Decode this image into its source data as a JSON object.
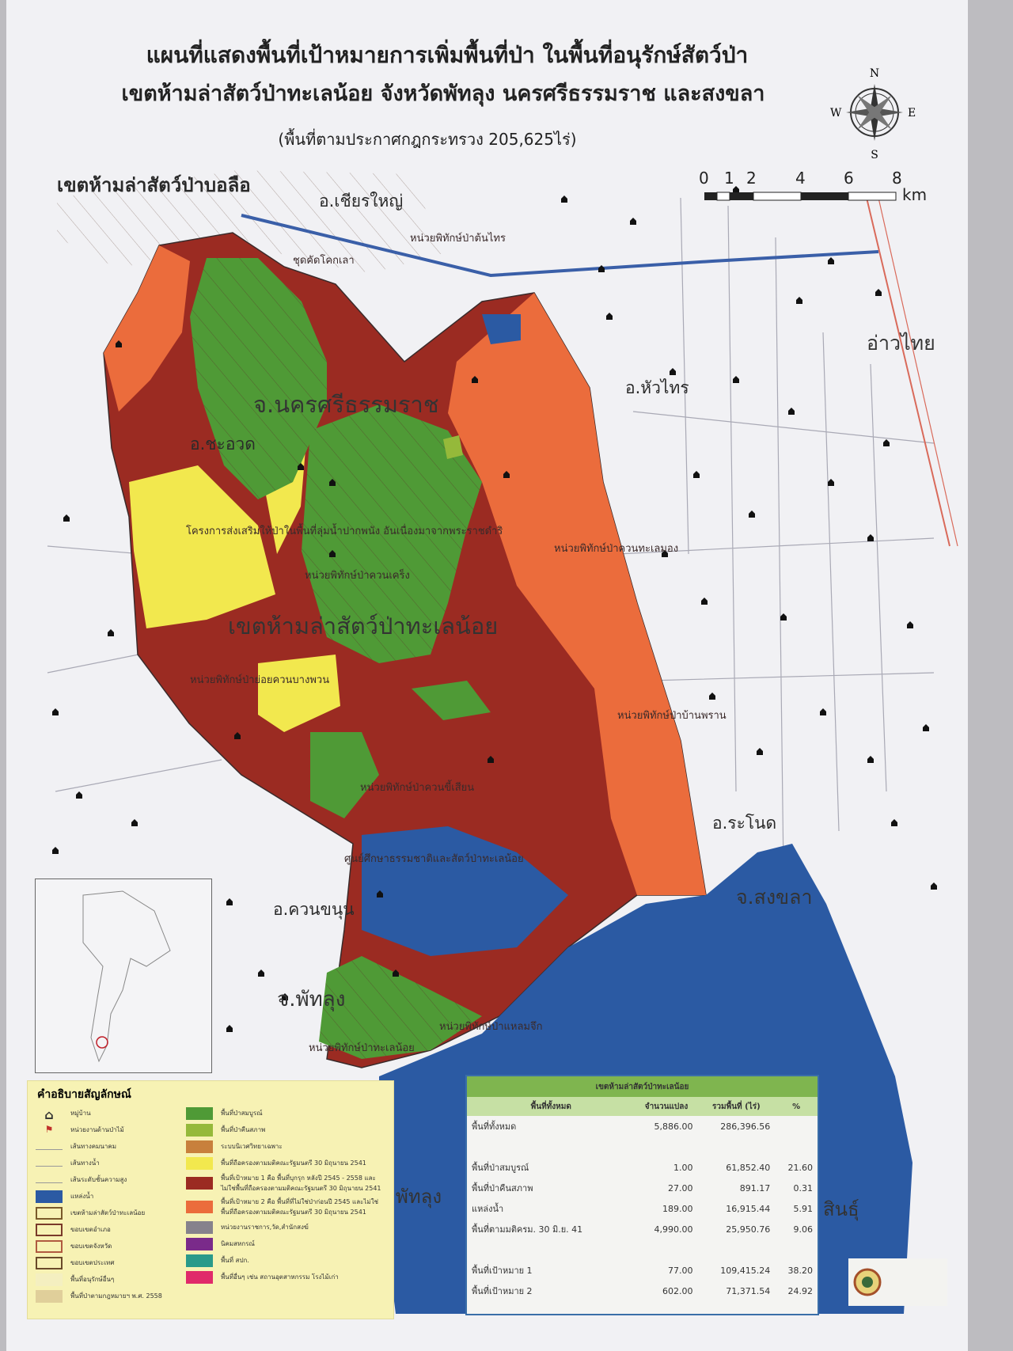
{
  "title": {
    "line1": "แผนที่แสดงพื้นที่เป้าหมายการเพิ่มพื้นที่ป่า ในพื้นที่อนุรักษ์สัตว์ป่า",
    "line2": "เขตห้ามล่าสัตว์ป่าทะเลน้อย จังหวัดพัทลุง นครศรีธรรมราช และสงขลา",
    "line3": "(พื้นที่ตามประกาศกฎกระทรวง 205,625ไร่)"
  },
  "compass": {
    "n": "N",
    "s": "S",
    "e": "E",
    "w": "W"
  },
  "scale_bar": {
    "ticks": [
      "0",
      "1",
      "2",
      "4",
      "6",
      "8"
    ],
    "unit": "km"
  },
  "colors": {
    "complete_forest": "#4f9a36",
    "restored_forest": "#95b93a",
    "target1": "#9b2b22",
    "target2": "#eb6c3c",
    "cabinet_holding": "#f2e84e",
    "water": "#2b5aa3",
    "paper": "#f1f1f4"
  },
  "map_labels": {
    "bolue": "เขตห้ามล่าสัตว์ป่าบอลือ",
    "chian_yai": "อ.เชียรใหญ่",
    "ton_sai": "หน่วยพิทักษ์ป่าต้นไทร",
    "khok_lao": "ชุดคัดโคกเลา",
    "gulf": "อ่าวไทย",
    "hua_sai": "อ.หัวไทร",
    "nakhon": "จ.นครศรีธรรมราช",
    "cha_uat": "อ.ชะอวด",
    "project": "โครงการส่งเสริมให้ป่าในพื้นที่ลุ่มน้ำปากพนัง อันเนื่องมาจากพระราชดำริ",
    "khuan_thale_mong": "หน่วยพิทักษ์ป่าควนทะเลมอง",
    "khuan_khreng": "หน่วยพิทักษ์ป่าควนเคร็ง",
    "reserve": "เขตห้ามล่าสัตว์ป่าทะเลน้อย",
    "khuan_bang": "หน่วยพิทักษ์ป่าย่อยควนบางพวน",
    "ban_phran": "หน่วยพิทักษ์ป่าบ้านพราน",
    "khuan_khi_sian": "หน่วยพิทักษ์ป่าควนขี้เสียน",
    "ranot": "อ.ระโนด",
    "study_center": "ศูนย์ศึกษาธรรมชาติและสัตว์ป่าทะเลน้อย",
    "songkhla": "จ.สงขลา",
    "khuan_khanun": "อ.ควนขนุน",
    "phatthalung": "จ.พัทลุง",
    "laem_chuek": "หน่วยพิทักษ์ป่าแหลมจึก",
    "lam_pam": "หน่วยพิทักษ์ป่าทะเลน้อย",
    "phatthalung_lake": "พัทลุง",
    "sin": "สินธุ์"
  },
  "legend": {
    "title": "คำอธิบายสัญลักษณ์",
    "left": [
      {
        "label": "หมู่บ้าน",
        "icon": "village-icon"
      },
      {
        "label": "หน่วยงานด้านป่าไม้",
        "icon": "forest-unit-icon"
      },
      {
        "label": "เส้นทางคมนาคม",
        "icon": "road-line"
      },
      {
        "label": "เส้นทางน้ำ",
        "icon": "river-line"
      },
      {
        "label": "เส้นระดับชั้นความสูง",
        "icon": "contour-line"
      },
      {
        "label": "แหล่งน้ำ",
        "color": "#2b5aa3"
      },
      {
        "label": "เขตห้ามล่าสัตว์ป่าทะเลน้อย",
        "outline": "#7a5a2a"
      },
      {
        "label": "ขอบเขตอำเภอ",
        "outline": "#7a3a2a"
      },
      {
        "label": "ขอบเขตจังหวัด",
        "outline": "#b05a40"
      },
      {
        "label": "ขอบเขตประเทศ",
        "outline": "#6a4a2a"
      },
      {
        "label": "พื้นที่อนุรักษ์อื่นๆ",
        "color": "#f4efc0"
      },
      {
        "label": "พื้นที่ป่าตามกฎหมายฯ พ.ศ. 2558",
        "color": "#e0cf9a"
      }
    ],
    "right": [
      {
        "label": "พื้นที่ป่าสมบูรณ์",
        "color": "#4f9a36"
      },
      {
        "label": "พื้นที่ป่าคืนสภาพ",
        "color": "#95b93a"
      },
      {
        "label": "ระบบนิเวศวิทยาเฉพาะ",
        "color": "#c8803c"
      },
      {
        "label": "พื้นที่ถือครองตามมติคณะรัฐมนตรี 30 มิถุนายน 2541",
        "color": "#f2e84e"
      },
      {
        "label": "พื้นที่เป้าหมาย 1 คือ พื้นที่บุกรุก หลังปี 2545 - 2558 และไม่ใช่พื้นที่ถือครองตามมติคณะรัฐมนตรี 30 มิถุนายน 2541",
        "color": "#9b2b22"
      },
      {
        "label": "พื้นที่เป้าหมาย 2 คือ พื้นที่ที่ไม่ใช่ป่าก่อนปี 2545 และไม่ใช่พื้นที่ถือครองตามมติคณะรัฐมนตรี 30 มิถุนายน 2541",
        "color": "#eb6c3c"
      },
      {
        "label": "หน่วยงานราชการ,วัด,สำนักสงฆ์",
        "color": "#86828c"
      },
      {
        "label": "นิคมสหกรณ์",
        "color": "#7a2a8a"
      },
      {
        "label": "พื้นที่ สปก.",
        "color": "#2a9a8a"
      },
      {
        "label": "พื้นที่อื่นๆ เช่น สถานอุตสาหกรรม โรงไม้เก่า",
        "color": "#e02a6a"
      }
    ]
  },
  "table": {
    "caption": "เขตห้ามล่าสัตว์ป่าทะเลน้อย",
    "headers": [
      "พื้นที่ทั้งหมด",
      "จำนวนแปลง",
      "รวมพื้นที่ (ไร่)",
      "%"
    ],
    "rows": [
      [
        "พื้นที่ทั้งหมด",
        "5,886.00",
        "286,396.56",
        ""
      ],
      [
        "",
        "",
        "",
        ""
      ],
      [
        "พื้นที่ป่าสมบูรณ์",
        "1.00",
        "61,852.40",
        "21.60"
      ],
      [
        "พื้นที่ป่าคืนสภาพ",
        "27.00",
        "891.17",
        "0.31"
      ],
      [
        "แหล่งน้ำ",
        "189.00",
        "16,915.44",
        "5.91"
      ],
      [
        "พื้นที่ตามมติครม. 30 มิ.ย. 41",
        "4,990.00",
        "25,950.76",
        "9.06"
      ],
      [
        "",
        "",
        "",
        ""
      ],
      [
        "พื้นที่เป้าหมาย 1",
        "77.00",
        "109,415.24",
        "38.20"
      ],
      [
        "พื้นที่เป้าหมาย 2",
        "602.00",
        "71,371.54",
        "24.92"
      ]
    ]
  }
}
